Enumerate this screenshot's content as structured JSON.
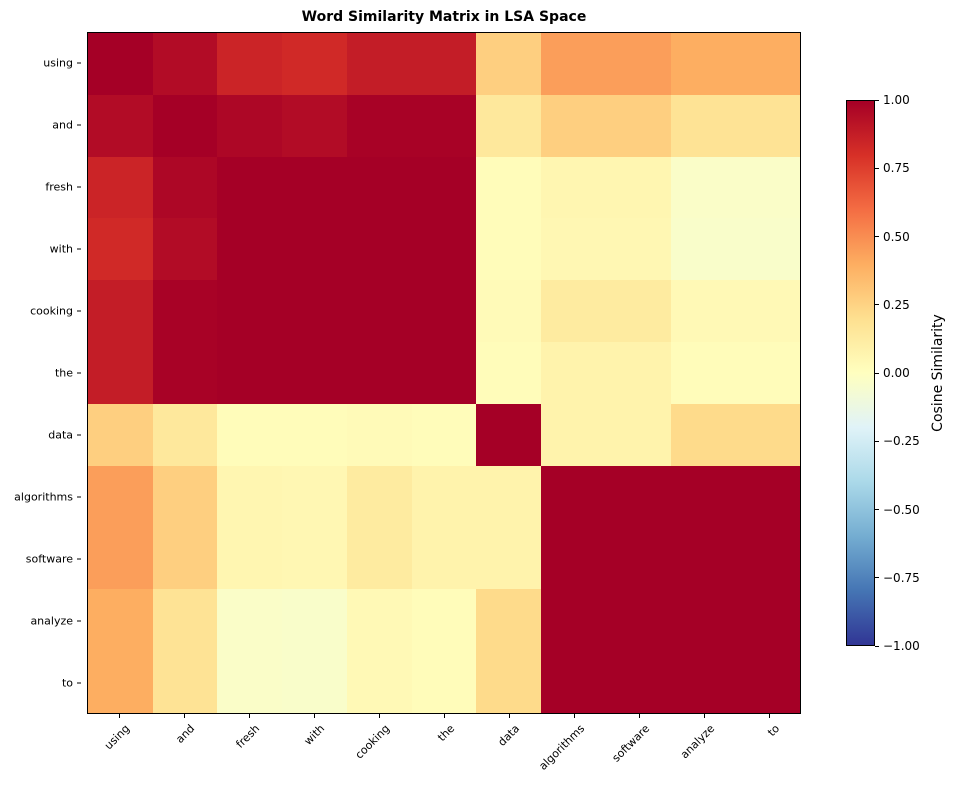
{
  "chart_data": {
    "type": "heatmap",
    "title": "Word Similarity Matrix in LSA Space",
    "xlabel": "",
    "ylabel": "",
    "colormap": "RdYlBu_r",
    "vmin": -1.0,
    "vmax": 1.0,
    "colorbar_label": "Cosine Similarity",
    "colorbar_ticks": [
      "1.00",
      "0.75",
      "0.50",
      "0.25",
      "0.00",
      "−0.25",
      "−0.50",
      "−0.75",
      "−1.00"
    ],
    "x_labels": [
      "using",
      "and",
      "fresh",
      "with",
      "cooking",
      "the",
      "data",
      "algorithms",
      "software",
      "analyze",
      "to"
    ],
    "y_labels": [
      "using",
      "and",
      "fresh",
      "with",
      "cooking",
      "the",
      "data",
      "algorithms",
      "software",
      "analyze",
      "to"
    ],
    "matrix": [
      [
        1.0,
        0.95,
        0.85,
        0.83,
        0.88,
        0.88,
        0.27,
        0.45,
        0.45,
        0.4,
        0.4
      ],
      [
        0.95,
        1.0,
        0.97,
        0.95,
        0.99,
        0.99,
        0.15,
        0.27,
        0.27,
        0.18,
        0.18
      ],
      [
        0.85,
        0.97,
        1.0,
        1.0,
        1.0,
        1.0,
        0.02,
        0.06,
        0.06,
        -0.03,
        -0.03
      ],
      [
        0.83,
        0.95,
        1.0,
        1.0,
        1.0,
        1.0,
        0.02,
        0.05,
        0.05,
        -0.04,
        -0.04
      ],
      [
        0.88,
        0.99,
        1.0,
        1.0,
        1.0,
        1.0,
        0.03,
        0.13,
        0.13,
        0.04,
        0.04
      ],
      [
        0.88,
        0.99,
        1.0,
        1.0,
        1.0,
        1.0,
        0.02,
        0.08,
        0.08,
        0.02,
        0.02
      ],
      [
        0.27,
        0.15,
        0.02,
        0.02,
        0.03,
        0.02,
        1.0,
        0.08,
        0.08,
        0.22,
        0.22
      ],
      [
        0.45,
        0.27,
        0.06,
        0.05,
        0.13,
        0.08,
        0.08,
        1.0,
        1.0,
        1.0,
        1.0
      ],
      [
        0.45,
        0.27,
        0.06,
        0.05,
        0.13,
        0.08,
        0.08,
        1.0,
        1.0,
        1.0,
        1.0
      ],
      [
        0.4,
        0.18,
        -0.03,
        -0.04,
        0.04,
        0.02,
        0.22,
        1.0,
        1.0,
        1.0,
        1.0
      ],
      [
        0.4,
        0.18,
        -0.03,
        -0.04,
        0.04,
        0.02,
        0.22,
        1.0,
        1.0,
        1.0,
        1.0
      ]
    ]
  }
}
